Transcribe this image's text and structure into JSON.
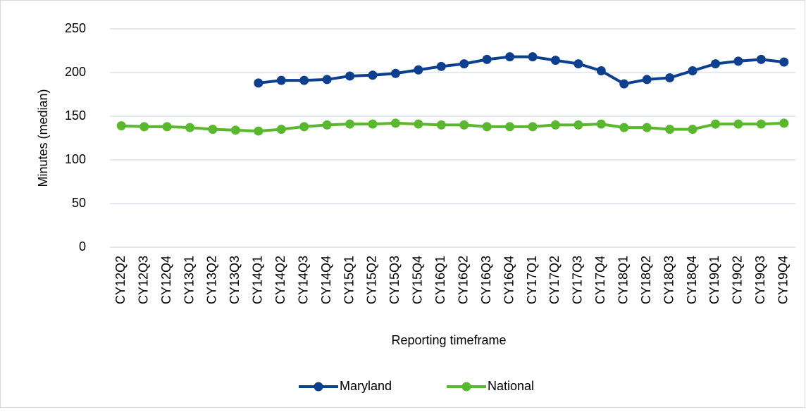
{
  "chart_data": {
    "type": "line",
    "y_label": "Minutes (median)",
    "x_label": "Reporting timeframe",
    "categories": [
      "CY12Q2",
      "CY12Q3",
      "CY12Q4",
      "CY13Q1",
      "CY13Q2",
      "CY13Q3",
      "CY14Q1",
      "CY14Q2",
      "CY14Q3",
      "CY14Q4",
      "CY15Q1",
      "CY15Q2",
      "CY15Q3",
      "CY15Q4",
      "CY16Q1",
      "CY16Q2",
      "CY16Q3",
      "CY16Q4",
      "CY17Q1",
      "CY17Q2",
      "CY17Q3",
      "CY17Q4",
      "CY18Q1",
      "CY18Q2",
      "CY18Q3",
      "CY18Q4",
      "CY19Q1",
      "CY19Q2",
      "CY19Q3",
      "CY19Q4"
    ],
    "series": [
      {
        "name": "Maryland",
        "color": "#0d3f8f",
        "values": [
          null,
          null,
          null,
          null,
          null,
          null,
          188,
          191,
          191,
          192,
          196,
          197,
          199,
          203,
          207,
          210,
          215,
          218,
          218,
          214,
          210,
          202,
          187,
          192,
          194,
          202,
          210,
          213,
          215,
          212
        ]
      },
      {
        "name": "National",
        "color": "#5ab82e",
        "values": [
          139,
          138,
          138,
          137,
          135,
          134,
          133,
          135,
          138,
          140,
          141,
          141,
          142,
          141,
          140,
          140,
          138,
          138,
          138,
          140,
          140,
          141,
          137,
          137,
          135,
          135,
          141,
          141,
          141,
          142
        ]
      }
    ],
    "ylim": [
      0,
      250
    ],
    "yticks": [
      0,
      50,
      100,
      150,
      200,
      250
    ],
    "grid": true,
    "legend": "bottom"
  }
}
